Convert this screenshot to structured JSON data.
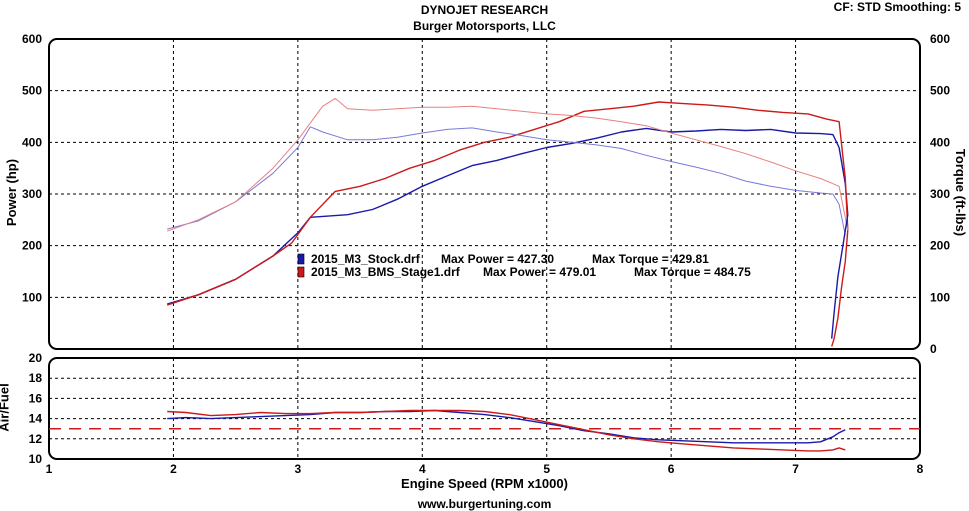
{
  "header": {
    "title": "DYNOJET RESEARCH",
    "subtitle": "Burger Motorsports, LLC",
    "cf_label": "CF: STD  Smoothing: 5"
  },
  "footer": {
    "url": "www.burgertuning.com"
  },
  "colors": {
    "stock": "#1a1aaa",
    "stage1": "#cc1a1a",
    "stock_light": "#7a7ad8",
    "stage1_light": "#e88080",
    "afr_target": "#cc1a1a"
  },
  "chart_data": [
    {
      "type": "line",
      "name": "power-torque",
      "xlabel": "",
      "ylabel": "Power (hp)",
      "ylabel_right": "Torque (ft-lbs)",
      "xlim": [
        1,
        8
      ],
      "ylim": [
        0,
        600
      ],
      "x_ticks": [
        1,
        2,
        3,
        4,
        5,
        6,
        7,
        8
      ],
      "y_ticks": [
        0,
        100,
        200,
        300,
        400,
        500,
        600
      ],
      "y_tick_labels_left": [
        "",
        "100",
        "200",
        "300",
        "400",
        "500",
        "600"
      ],
      "y_tick_labels_right": [
        "0",
        "100",
        "200",
        "300",
        "400",
        "500",
        "600"
      ],
      "grid": true,
      "legend": [
        {
          "file": "2015_M3_Stock.drf",
          "max_power_label": "Max Power = 427.30",
          "max_torque_label": "Max Torque = 429.81"
        },
        {
          "file": "2015_M3_BMS_Stage1.drf",
          "max_power_label": "Max Power = 479.01",
          "max_torque_label": "Max Torque = 484.75"
        }
      ],
      "series": [
        {
          "key": "stock_power",
          "x": [
            1.95,
            2.2,
            2.5,
            2.8,
            3.0,
            3.1,
            3.4,
            3.6,
            3.8,
            4.0,
            4.2,
            4.4,
            4.6,
            4.8,
            5.0,
            5.2,
            5.4,
            5.6,
            5.8,
            6.0,
            6.2,
            6.4,
            6.6,
            6.8,
            7.0,
            7.2,
            7.3,
            7.35,
            7.4,
            7.42
          ],
          "y": [
            87,
            105,
            135,
            180,
            225,
            255,
            260,
            270,
            290,
            315,
            335,
            355,
            365,
            378,
            390,
            398,
            408,
            420,
            427,
            420,
            422,
            425,
            423,
            425,
            418,
            417,
            415,
            390,
            320,
            260
          ]
        },
        {
          "key": "stage1_power",
          "x": [
            1.95,
            2.2,
            2.5,
            2.8,
            2.95,
            3.1,
            3.3,
            3.5,
            3.7,
            3.9,
            4.1,
            4.3,
            4.5,
            4.7,
            4.9,
            5.1,
            5.3,
            5.5,
            5.7,
            5.9,
            6.1,
            6.3,
            6.5,
            6.7,
            6.9,
            7.1,
            7.25,
            7.35,
            7.4,
            7.42
          ],
          "y": [
            85,
            105,
            135,
            180,
            205,
            255,
            305,
            315,
            330,
            350,
            365,
            385,
            400,
            410,
            425,
            440,
            460,
            465,
            470,
            478,
            475,
            472,
            468,
            462,
            458,
            455,
            445,
            440,
            330,
            230
          ]
        },
        {
          "key": "stock_torque",
          "x": [
            1.95,
            2.2,
            2.5,
            2.8,
            3.0,
            3.1,
            3.2,
            3.4,
            3.6,
            3.8,
            4.0,
            4.2,
            4.4,
            4.6,
            4.8,
            5.0,
            5.2,
            5.4,
            5.6,
            5.8,
            6.0,
            6.2,
            6.4,
            6.6,
            6.8,
            7.0,
            7.2,
            7.3,
            7.35,
            7.4
          ],
          "y": [
            232,
            248,
            285,
            340,
            390,
            430,
            420,
            405,
            405,
            410,
            418,
            425,
            428,
            420,
            413,
            405,
            400,
            395,
            388,
            375,
            363,
            352,
            340,
            325,
            315,
            307,
            302,
            300,
            280,
            220
          ]
        },
        {
          "key": "stage1_torque",
          "x": [
            1.95,
            2.2,
            2.5,
            2.8,
            3.0,
            3.2,
            3.3,
            3.4,
            3.6,
            3.8,
            4.0,
            4.2,
            4.4,
            4.6,
            4.8,
            5.0,
            5.2,
            5.4,
            5.6,
            5.8,
            6.0,
            6.2,
            6.4,
            6.6,
            6.8,
            7.0,
            7.2,
            7.3,
            7.35,
            7.42
          ],
          "y": [
            228,
            250,
            285,
            350,
            405,
            470,
            485,
            465,
            462,
            465,
            468,
            468,
            470,
            465,
            460,
            455,
            452,
            447,
            440,
            432,
            418,
            405,
            392,
            378,
            362,
            345,
            330,
            320,
            315,
            230
          ]
        }
      ],
      "series_drop": [
        {
          "key": "stock_drop",
          "x": [
            7.42,
            7.38,
            7.34,
            7.31,
            7.29
          ],
          "y": [
            260,
            200,
            140,
            70,
            20
          ]
        },
        {
          "key": "stage1_drop",
          "x": [
            7.42,
            7.4,
            7.37,
            7.34,
            7.31,
            7.29
          ],
          "y": [
            230,
            170,
            120,
            60,
            20,
            5
          ]
        }
      ]
    },
    {
      "type": "line",
      "name": "air-fuel",
      "ylabel": "Air/Fuel",
      "xlabel": "Engine Speed (RPM x1000)",
      "xlim": [
        1,
        8
      ],
      "ylim": [
        10,
        20
      ],
      "x_ticks": [
        1,
        2,
        3,
        4,
        5,
        6,
        7,
        8
      ],
      "x_tick_labels": [
        "1",
        "2",
        "3",
        "4",
        "5",
        "6",
        "7",
        "8"
      ],
      "y_ticks": [
        10,
        12,
        14,
        16,
        18,
        20
      ],
      "y_tick_labels": [
        "10",
        "12",
        "14",
        "16",
        "18",
        "20"
      ],
      "target_afr": 13.0,
      "series": [
        {
          "key": "stock_afr",
          "x": [
            1.95,
            2.1,
            2.3,
            2.5,
            2.7,
            2.9,
            3.1,
            3.3,
            3.5,
            3.7,
            3.9,
            4.1,
            4.3,
            4.5,
            4.7,
            4.9,
            5.1,
            5.3,
            5.5,
            5.7,
            5.9,
            6.1,
            6.3,
            6.5,
            6.7,
            6.9,
            7.1,
            7.2,
            7.3,
            7.35,
            7.4
          ],
          "y": [
            14.0,
            14.1,
            14.0,
            14.1,
            14.2,
            14.3,
            14.4,
            14.6,
            14.6,
            14.7,
            14.7,
            14.8,
            14.6,
            14.4,
            14.1,
            13.7,
            13.3,
            12.8,
            12.5,
            12.1,
            11.9,
            11.8,
            11.7,
            11.6,
            11.6,
            11.6,
            11.6,
            11.7,
            12.2,
            12.6,
            12.9
          ]
        },
        {
          "key": "stage1_afr",
          "x": [
            1.95,
            2.1,
            2.3,
            2.5,
            2.7,
            2.9,
            3.1,
            3.3,
            3.5,
            3.7,
            3.9,
            4.1,
            4.3,
            4.5,
            4.7,
            4.9,
            5.1,
            5.3,
            5.5,
            5.7,
            5.9,
            6.1,
            6.3,
            6.5,
            6.7,
            6.9,
            7.1,
            7.2,
            7.3,
            7.35,
            7.4
          ],
          "y": [
            14.7,
            14.6,
            14.3,
            14.4,
            14.6,
            14.5,
            14.5,
            14.6,
            14.6,
            14.7,
            14.8,
            14.8,
            14.8,
            14.7,
            14.4,
            13.9,
            13.4,
            12.9,
            12.4,
            12.0,
            11.7,
            11.5,
            11.3,
            11.1,
            11.0,
            10.9,
            10.8,
            10.8,
            10.9,
            11.1,
            10.9
          ]
        }
      ]
    }
  ]
}
